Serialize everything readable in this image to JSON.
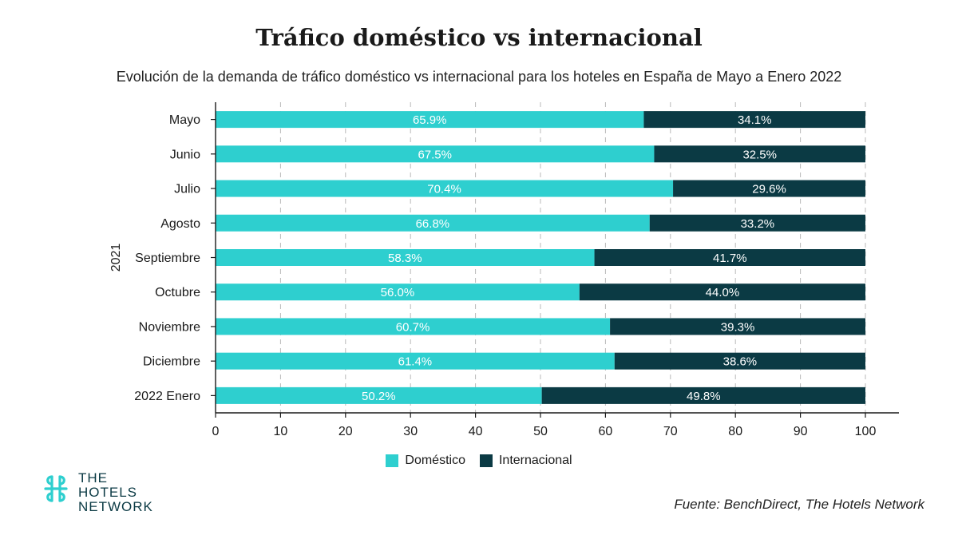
{
  "title": "Tráfico doméstico vs internacional",
  "subtitle": "Evolución de la demanda de tráfico doméstico vs internacional para los hoteles en España de Mayo a Enero 2022",
  "colors": {
    "domestic": "#2ecfcf",
    "international": "#0b3a44",
    "gridline": "#b8b8b8",
    "axis": "#1a1a1a"
  },
  "legend": {
    "domestic_label": "Doméstico",
    "international_label": "Internacional",
    "placement": "bottom-center"
  },
  "logo": {
    "icon": "hotels-network-logo-icon",
    "line1": "THE",
    "line2": "HOTELS",
    "line3": "NETWORK"
  },
  "source": "Fuente: BenchDirect, The Hotels Network",
  "chart_data": {
    "type": "bar",
    "orientation": "horizontal",
    "stacked": true,
    "title": "Tráfico doméstico vs internacional",
    "subtitle": "Evolución de la demanda de tráfico doméstico vs internacional para los hoteles en España de Mayo a Enero 2022",
    "ylabel": "2021",
    "xlabel": "",
    "categories": [
      "Mayo",
      "Junio",
      "Julio",
      "Agosto",
      "Septiembre",
      "Octubre",
      "Noviembre",
      "Diciembre",
      "2022 Enero"
    ],
    "series": [
      {
        "name": "Doméstico",
        "values": [
          65.9,
          67.5,
          70.4,
          66.8,
          58.3,
          56.0,
          60.7,
          61.4,
          50.2
        ]
      },
      {
        "name": "Internacional",
        "values": [
          34.1,
          32.5,
          29.6,
          33.2,
          41.7,
          44.0,
          39.3,
          38.6,
          49.8
        ]
      }
    ],
    "data_labels": [
      [
        "65.9%",
        "67.5%",
        "70.4%",
        "66.8%",
        "58.3%",
        "56.0%",
        "60.7%",
        "61.4%",
        "50.2%"
      ],
      [
        "34.1%",
        "32.5%",
        "29.6%",
        "33.2%",
        "41.7%",
        "44.0%",
        "39.3%",
        "38.6%",
        "49.8%"
      ]
    ],
    "xlim": [
      0,
      100
    ],
    "xticks": [
      0,
      10,
      20,
      30,
      40,
      50,
      60,
      70,
      80,
      90,
      100
    ],
    "grid": "vertical dashed",
    "legend": "bottom"
  }
}
